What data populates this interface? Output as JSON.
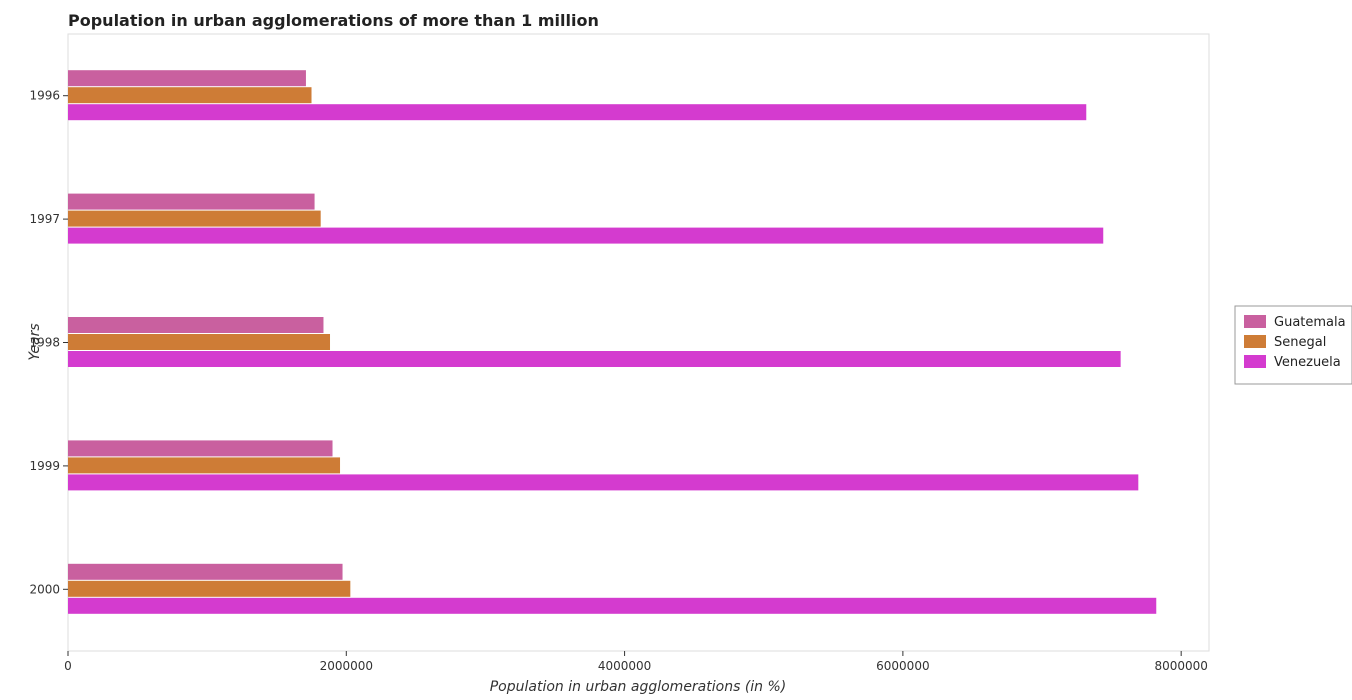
{
  "chart_data": {
    "type": "bar",
    "orientation": "horizontal",
    "title": "Population in urban agglomerations of more than 1 million",
    "xlabel": "Population in urban agglomerations (in %)",
    "ylabel": "Years",
    "categories": [
      "1996",
      "1997",
      "1998",
      "1999",
      "2000"
    ],
    "xlim": [
      0,
      8200000
    ],
    "xticks": [
      0,
      2000000,
      4000000,
      6000000,
      8000000
    ],
    "xtick_labels": [
      "0",
      "2000000",
      "4000000",
      "6000000",
      "8000000"
    ],
    "grid": false,
    "legend_position": "right",
    "series": [
      {
        "name": "Guatemala",
        "color": "#c9609f",
        "values": [
          1710000,
          1772000,
          1836000,
          1901000,
          1973000
        ]
      },
      {
        "name": "Senegal",
        "color": "#ce7c36",
        "values": [
          1750000,
          1816000,
          1883000,
          1955000,
          2029000
        ]
      },
      {
        "name": "Venezuela",
        "color": "#d43bcf",
        "values": [
          7318000,
          7440000,
          7565000,
          7692000,
          7821000
        ]
      }
    ]
  }
}
